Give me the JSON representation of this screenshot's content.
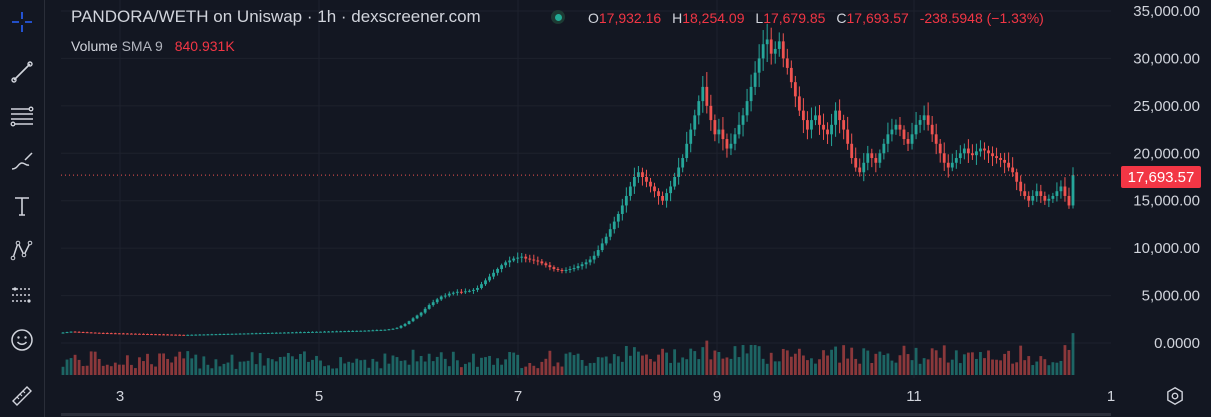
{
  "header": {
    "title": "PANDORA/WETH on Uniswap · 1h · dexscreener.com",
    "ohlc": {
      "o_label": "O",
      "o_value": "17,932.16",
      "h_label": "H",
      "h_value": "18,254.09",
      "l_label": "L",
      "l_value": "17,679.85",
      "c_label": "C",
      "c_value": "17,693.57",
      "change": "-238.5948 (−1.33%)"
    },
    "volume_label": "Volume",
    "volume_sma": "SMA 9",
    "volume_value": "840.931K"
  },
  "price_tag": "17,693.57",
  "toolbar": {
    "tools": [
      "crosshair-icon",
      "trendline-icon",
      "fib-retracement-icon",
      "brush-icon",
      "text-icon",
      "pattern-icon",
      "forecast-icon",
      "emoji-icon",
      "ruler-icon"
    ]
  },
  "colors": {
    "background": "#131722",
    "up": "#26a69a",
    "down": "#ef5350",
    "grid": "#1e222d",
    "text": "#d1d4dc"
  },
  "chart_data": {
    "type": "candlestick",
    "price_axis": {
      "ticks": [
        0,
        5000,
        10000,
        15000,
        20000,
        25000,
        30000,
        35000
      ],
      "tick_labels": [
        "0.0000",
        "5,000.00",
        "10,000.00",
        "15,000.00",
        "20,000.00",
        "25,000.00",
        "30,000.00",
        "35,000.00"
      ]
    },
    "time_axis": {
      "labels": [
        "3",
        "5",
        "7",
        "9",
        "11",
        "1"
      ]
    },
    "last_price": 17693.57,
    "series": [
      {
        "name": "price",
        "closes": [
          1100,
          1150,
          1200,
          1180,
          1160,
          1140,
          1120,
          1100,
          1080,
          1060,
          1050,
          1040,
          1030,
          1020,
          1010,
          1000,
          990,
          980,
          970,
          960,
          950,
          940,
          930,
          920,
          910,
          900,
          890,
          880,
          870,
          860,
          850,
          860,
          870,
          880,
          890,
          900,
          910,
          920,
          930,
          940,
          950,
          960,
          970,
          980,
          990,
          1000,
          1010,
          1020,
          1030,
          1040,
          1050,
          1060,
          1070,
          1080,
          1090,
          1100,
          1110,
          1120,
          1130,
          1140,
          1150,
          1160,
          1170,
          1180,
          1190,
          1200,
          1210,
          1220,
          1230,
          1240,
          1250,
          1260,
          1270,
          1280,
          1290,
          1300,
          1320,
          1340,
          1360,
          1380,
          1400,
          1450,
          1500,
          1600,
          1800,
          2000,
          2300,
          2600,
          2900,
          3200,
          3600,
          4000,
          4300,
          4600,
          4900,
          5000,
          5200,
          5300,
          5400,
          5350,
          5450,
          5500,
          5600,
          5800,
          6200,
          6600,
          7000,
          7400,
          7800,
          8200,
          8500,
          8700,
          8900,
          9000,
          9100,
          8900,
          8800,
          8700,
          8600,
          8400,
          8200,
          8000,
          7800,
          7700,
          7600,
          7700,
          7800,
          7900,
          8100,
          8300,
          8500,
          8800,
          9200,
          9800,
          10500,
          11200,
          12000,
          12800,
          13600,
          14500,
          15500,
          16500,
          17500,
          18000,
          17500,
          17000,
          16500,
          16000,
          15500,
          15000,
          15800,
          16500,
          17500,
          18500,
          19500,
          21000,
          22500,
          24000,
          25500,
          27000,
          25000,
          23500,
          22000,
          22500,
          21500,
          20500,
          21000,
          22000,
          23000,
          24000,
          25500,
          27000,
          28500,
          30000,
          31500,
          32000,
          30500,
          31000,
          31800,
          30000,
          29000,
          27500,
          26000,
          24500,
          23500,
          22500,
          23500,
          24000,
          23000,
          22500,
          22000,
          23000,
          24500,
          23500,
          22500,
          21000,
          19500,
          18500,
          18000,
          19000,
          20000,
          19500,
          19000,
          20000,
          21000,
          22000,
          22500,
          23000,
          22500,
          21500,
          21000,
          22000,
          23000,
          23500,
          24000,
          23000,
          22000,
          21000,
          20000,
          19000,
          18500,
          19000,
          19500,
          20000,
          20500,
          20000,
          19800,
          20200,
          20500,
          20300,
          20000,
          19700,
          19500,
          19300,
          19000,
          18500,
          18000,
          17000,
          16000,
          15500,
          15000,
          15500,
          16000,
          15500,
          15000,
          15200,
          15500,
          16000,
          16500,
          15500,
          14500,
          17693.57
        ]
      },
      {
        "name": "volume",
        "unit": "relative"
      }
    ]
  }
}
